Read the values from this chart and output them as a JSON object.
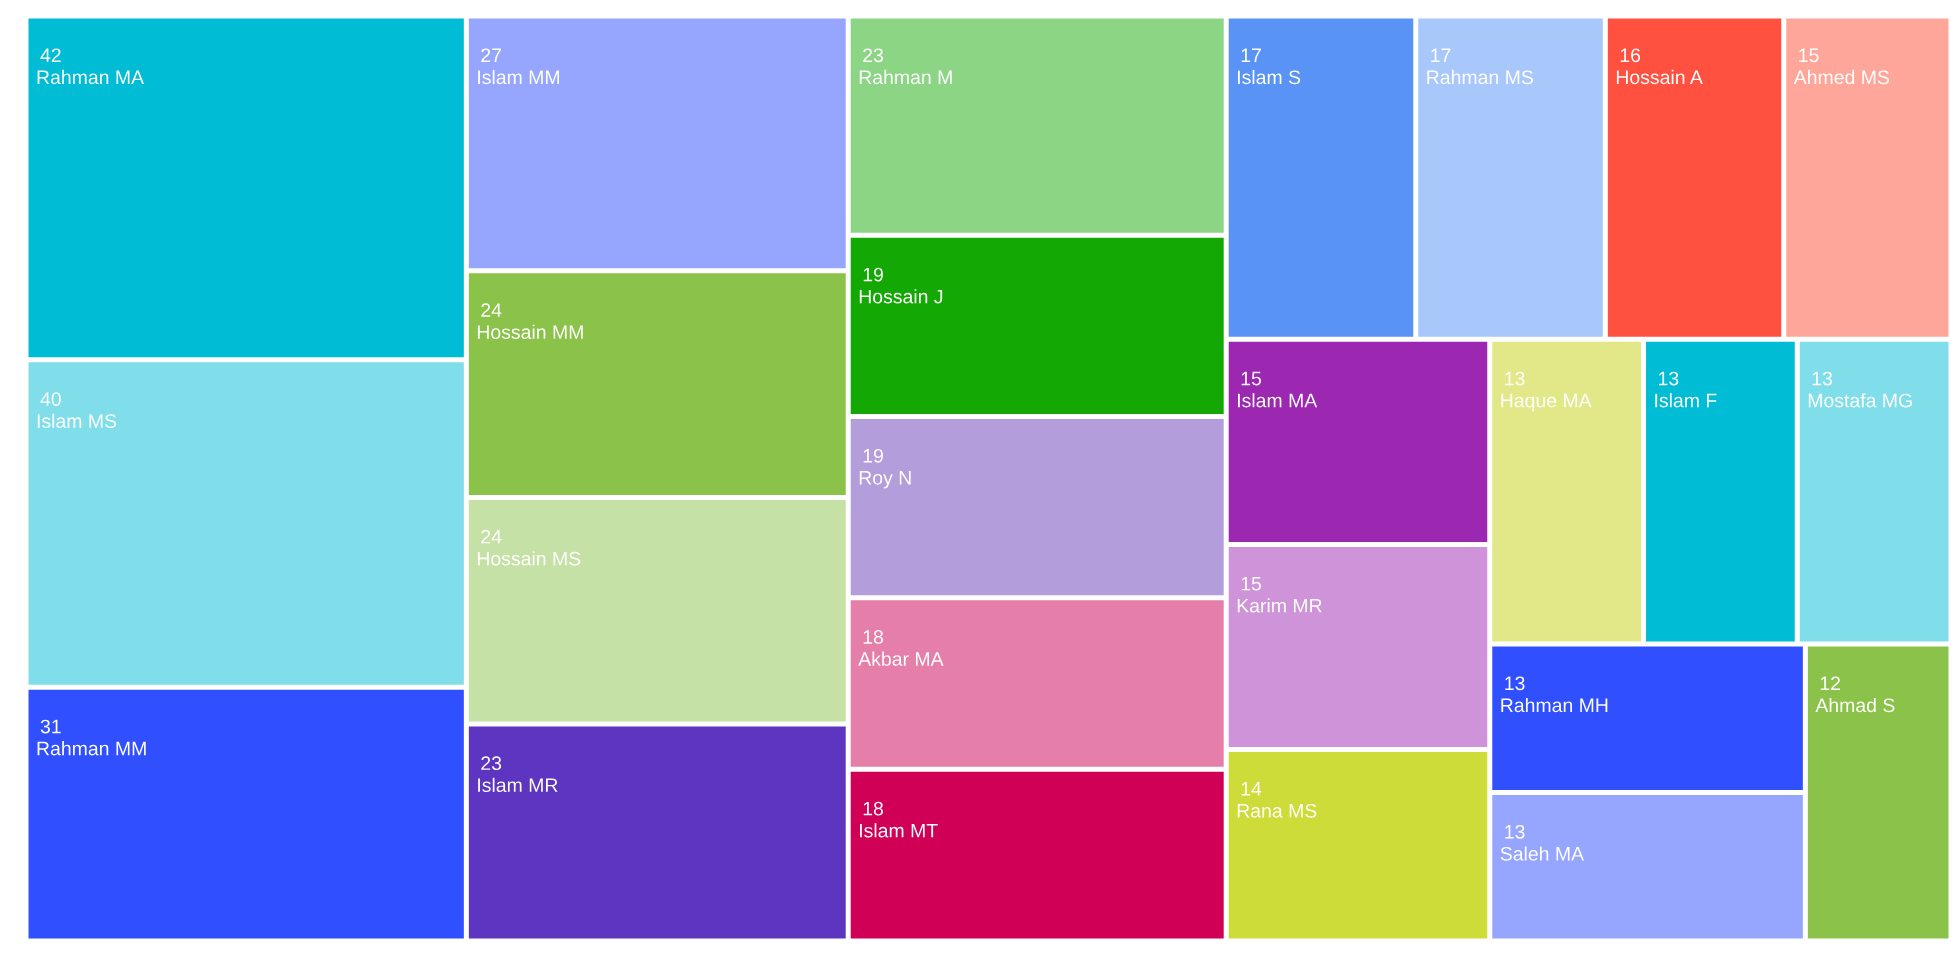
{
  "chart_data": {
    "type": "other",
    "categories": [
      "Rahman MA",
      "Islam MS",
      "Rahman MM",
      "Islam MM",
      "Hossain MM",
      "Hossain MS",
      "Islam MR",
      "Rahman M",
      "Hossain J",
      "Roy N",
      "Akbar MA",
      "Islam MT",
      "Islam S",
      "Rahman MS",
      "Hossain A",
      "Ahmed MS",
      "Islam MA",
      "Karim MR",
      "Rana MS",
      "Haque MA",
      "Islam F",
      "Mostafa MG",
      "Rahman MH",
      "Saleh MA",
      "Ahmad S"
    ],
    "values": [
      42,
      40,
      31,
      27,
      24,
      24,
      23,
      23,
      19,
      19,
      18,
      18,
      17,
      17,
      16,
      15,
      15,
      15,
      14,
      13,
      13,
      13,
      13,
      13,
      12
    ],
    "colors": [
      "#00bcd4",
      "#80deea",
      "#304ffe",
      "#96a6ff",
      "#8bc34a",
      "#c5e1a5",
      "#5e35c1",
      "#8bd585",
      "#14a805",
      "#b39ddb",
      "#e57fa9",
      "#d10057",
      "#5893f5",
      "#a8c7fa",
      "#ff5040",
      "#ffa69a",
      "#9c27b0",
      "#ce93d8",
      "#cddc39",
      "#e2e888",
      "#00bcd4",
      "#80deea",
      "#304ffe",
      "#96a6ff",
      "#8bc34a"
    ],
    "data_labels": true
  }
}
